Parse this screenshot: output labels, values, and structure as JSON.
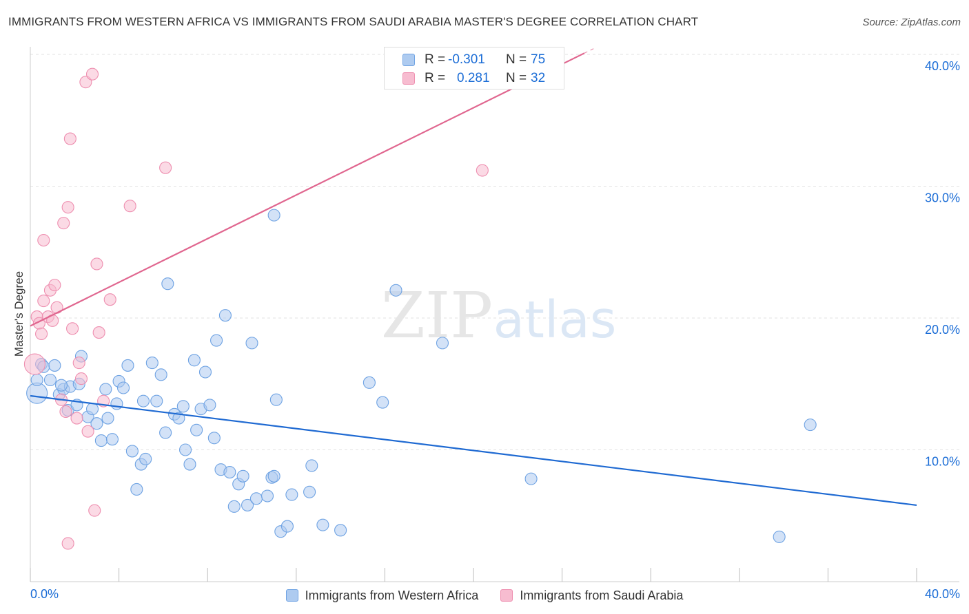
{
  "title": "IMMIGRANTS FROM WESTERN AFRICA VS IMMIGRANTS FROM SAUDI ARABIA MASTER'S DEGREE CORRELATION CHART",
  "source": "Source: ZipAtlas.com",
  "watermark": {
    "zip": "ZIP",
    "atlas": "atlas"
  },
  "stats_legend": {
    "rows": [
      {
        "r_label": "R =",
        "r_value": "-0.301",
        "n_label": "N =",
        "n_value": "75",
        "color": "#aecbf0"
      },
      {
        "r_label": "R =",
        "r_value": "0.281",
        "n_label": "N =",
        "n_value": "32",
        "color": "#f7bcd0"
      }
    ]
  },
  "chart_data": {
    "type": "scatter",
    "xlabel": "",
    "ylabel": "Master's Degree",
    "xlim": [
      0,
      40
    ],
    "ylim": [
      0,
      40
    ],
    "x_tick_labels": [
      "0.0%",
      "40.0%"
    ],
    "y_ticks": [
      10,
      20,
      30,
      40
    ],
    "y_tick_labels": [
      "10.0%",
      "20.0%",
      "30.0%",
      "40.0%"
    ],
    "grid": true,
    "legend_position": "bottom-center",
    "series": [
      {
        "name": "Immigrants from Western Africa",
        "color": "#6fa3e3",
        "fill": "#aecbf0",
        "line_color": "#1f6ad2",
        "trend": {
          "x": [
            0,
            40
          ],
          "y": [
            14.1,
            5.8
          ],
          "dashed_from": null
        },
        "points": [
          [
            0.3,
            14.3
          ],
          [
            0.3,
            15.3
          ],
          [
            0.5,
            16.5
          ],
          [
            0.6,
            16.3
          ],
          [
            0.9,
            15.3
          ],
          [
            1.1,
            16.4
          ],
          [
            1.3,
            14.2
          ],
          [
            1.5,
            14.6
          ],
          [
            1.8,
            14.8
          ],
          [
            1.7,
            13.0
          ],
          [
            2.1,
            13.4
          ],
          [
            2.2,
            15.0
          ],
          [
            2.3,
            17.1
          ],
          [
            2.6,
            12.5
          ],
          [
            2.8,
            13.1
          ],
          [
            3.0,
            12.0
          ],
          [
            3.2,
            10.7
          ],
          [
            3.4,
            14.6
          ],
          [
            3.5,
            12.4
          ],
          [
            3.7,
            10.8
          ],
          [
            3.9,
            13.5
          ],
          [
            4.0,
            15.2
          ],
          [
            4.2,
            14.7
          ],
          [
            4.4,
            16.4
          ],
          [
            4.6,
            9.9
          ],
          [
            4.8,
            7.0
          ],
          [
            5.0,
            8.9
          ],
          [
            5.1,
            13.7
          ],
          [
            5.2,
            9.3
          ],
          [
            5.5,
            16.6
          ],
          [
            5.7,
            13.7
          ],
          [
            5.9,
            15.7
          ],
          [
            6.1,
            11.3
          ],
          [
            6.2,
            22.6
          ],
          [
            6.5,
            12.7
          ],
          [
            6.7,
            12.4
          ],
          [
            6.9,
            13.3
          ],
          [
            7.0,
            10.0
          ],
          [
            7.2,
            8.9
          ],
          [
            7.4,
            16.8
          ],
          [
            7.5,
            11.5
          ],
          [
            7.7,
            13.1
          ],
          [
            7.9,
            15.9
          ],
          [
            8.1,
            13.4
          ],
          [
            8.3,
            10.9
          ],
          [
            8.4,
            18.3
          ],
          [
            8.6,
            8.5
          ],
          [
            8.8,
            20.2
          ],
          [
            9.0,
            8.3
          ],
          [
            9.2,
            5.7
          ],
          [
            9.4,
            7.4
          ],
          [
            9.6,
            8.0
          ],
          [
            9.8,
            5.8
          ],
          [
            10.0,
            18.1
          ],
          [
            10.2,
            6.3
          ],
          [
            10.7,
            6.5
          ],
          [
            10.9,
            7.9
          ],
          [
            11.0,
            8.0
          ],
          [
            11.1,
            13.8
          ],
          [
            11.3,
            3.8
          ],
          [
            11.0,
            27.8
          ],
          [
            11.6,
            4.2
          ],
          [
            11.8,
            6.6
          ],
          [
            12.6,
            6.8
          ],
          [
            12.7,
            8.8
          ],
          [
            13.2,
            4.3
          ],
          [
            14.0,
            3.9
          ],
          [
            15.3,
            15.1
          ],
          [
            15.9,
            13.6
          ],
          [
            16.5,
            22.1
          ],
          [
            18.6,
            18.1
          ],
          [
            22.6,
            7.8
          ],
          [
            35.2,
            11.9
          ],
          [
            33.8,
            3.4
          ],
          [
            1.4,
            14.9
          ]
        ]
      },
      {
        "name": "Immigrants from Saudi Arabia",
        "color": "#ee8fb0",
        "fill": "#f7bcd0",
        "line_color": "#e0668f",
        "trend": {
          "x": [
            0,
            40
          ],
          "y": [
            19.4,
            52.5
          ],
          "solid_until": 25
        },
        "points": [
          [
            0.2,
            16.5
          ],
          [
            0.3,
            20.1
          ],
          [
            0.4,
            19.6
          ],
          [
            0.5,
            18.8
          ],
          [
            0.6,
            21.3
          ],
          [
            0.6,
            25.9
          ],
          [
            0.8,
            20.1
          ],
          [
            0.9,
            22.1
          ],
          [
            1.0,
            19.8
          ],
          [
            1.1,
            22.5
          ],
          [
            1.2,
            20.8
          ],
          [
            1.4,
            13.8
          ],
          [
            1.5,
            27.2
          ],
          [
            1.6,
            12.9
          ],
          [
            1.7,
            28.4
          ],
          [
            1.8,
            33.6
          ],
          [
            1.7,
            2.9
          ],
          [
            1.9,
            19.2
          ],
          [
            2.1,
            12.4
          ],
          [
            2.2,
            16.6
          ],
          [
            2.3,
            15.4
          ],
          [
            2.5,
            37.9
          ],
          [
            2.6,
            11.4
          ],
          [
            2.8,
            38.5
          ],
          [
            2.9,
            5.4
          ],
          [
            3.0,
            24.1
          ],
          [
            3.1,
            18.9
          ],
          [
            3.3,
            13.7
          ],
          [
            3.6,
            21.4
          ],
          [
            4.5,
            28.5
          ],
          [
            6.1,
            31.4
          ],
          [
            20.4,
            31.2
          ]
        ]
      }
    ]
  }
}
